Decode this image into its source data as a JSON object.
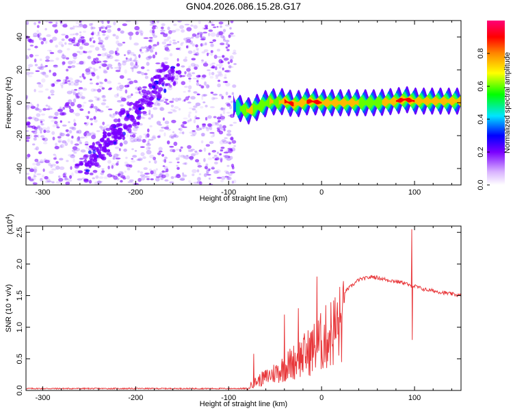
{
  "title": "GN04.2026.086.15.28.G17",
  "chart_data": [
    {
      "type": "heatmap",
      "xlabel": "Height of straight line (km)",
      "ylabel": "Frequency (Hz)",
      "xlim": [
        -318,
        150
      ],
      "ylim": [
        -50,
        50
      ],
      "xticks": [
        -300,
        -200,
        -100,
        0,
        100
      ],
      "yticks": [
        -40,
        -20,
        0,
        20,
        40
      ],
      "noise_region_x": [
        -318,
        -93
      ],
      "diagonal_feature": {
        "x": [
          -255,
          -160
        ],
        "y": [
          -40,
          20
        ]
      },
      "ridge": {
        "x": [
          -95,
          -85,
          -78,
          -70,
          -62,
          -55,
          -48,
          -40,
          -30,
          -20,
          -12,
          0,
          20,
          60,
          80,
          90,
          100,
          150
        ],
        "y": [
          -2,
          -4,
          -5,
          -3,
          -1,
          1,
          0,
          1,
          -1,
          0,
          1,
          0,
          0,
          0,
          1,
          2,
          1,
          1
        ],
        "amp": [
          0.4,
          0.7,
          0.8,
          0.7,
          0.6,
          0.8,
          0.7,
          0.9,
          0.9,
          0.8,
          1.0,
          0.9,
          0.8,
          0.7,
          0.9,
          1.0,
          0.9,
          0.8
        ]
      },
      "colorbar": {
        "label": "Normalized spectral amplitude",
        "ticks": [
          "0.0",
          "0.2",
          "0.4",
          "0.6",
          "0.8"
        ],
        "range": [
          0,
          1
        ],
        "colors": [
          "#ffffff",
          "#7700ff",
          "#0000ff",
          "#00ffff",
          "#00ff00",
          "#ffff00",
          "#ff7700",
          "#ff0000",
          "#ff0077"
        ]
      }
    },
    {
      "type": "line",
      "xlabel": "Height of straight line (km)",
      "ylabel": "SNR (10 * v/v)",
      "multiplier": "(x10",
      "multiplier_exp": "4",
      "xlim": [
        -318,
        150
      ],
      "ylim": [
        0,
        2.6
      ],
      "xticks": [
        -300,
        -200,
        -100,
        0,
        100
      ],
      "yticks": [
        "0.0",
        "0.5",
        "1.0",
        "1.5",
        "2.0",
        "2.5"
      ],
      "color": "#e8383b",
      "envelope": {
        "x": [
          -318,
          -80,
          -75,
          -60,
          -45,
          -30,
          -15,
          0,
          20,
          40,
          55,
          70,
          90,
          95,
          100,
          110,
          130,
          150
        ],
        "y": [
          0.0,
          0.0,
          0.15,
          0.3,
          0.45,
          0.65,
          0.85,
          1.1,
          1.5,
          1.75,
          1.8,
          1.75,
          1.7,
          1.65,
          1.65,
          1.6,
          1.55,
          1.5
        ]
      },
      "spikes": [
        {
          "x": 97,
          "y": 2.55
        },
        {
          "x": 97.5,
          "y": 0.8
        },
        {
          "x": -73,
          "y": 0.58
        },
        {
          "x": -40,
          "y": 1.2
        },
        {
          "x": -25,
          "y": 1.3
        },
        {
          "x": -5,
          "y": 1.8
        }
      ]
    }
  ]
}
